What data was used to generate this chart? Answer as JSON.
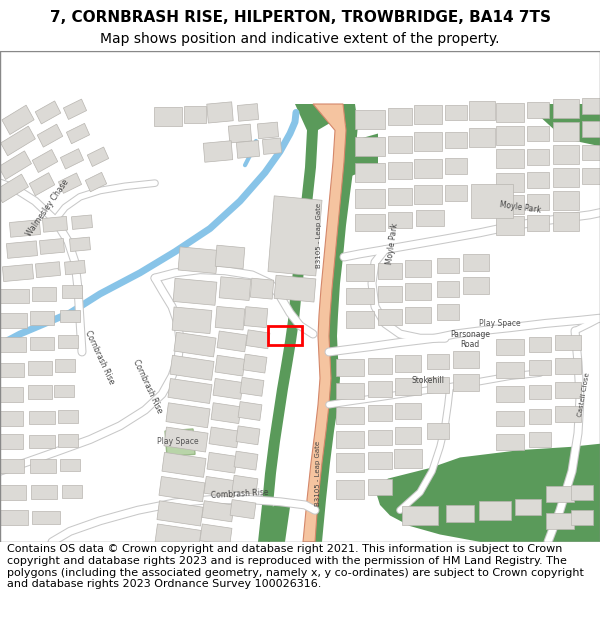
{
  "title_line1": "7, CORNBRASH RISE, HILPERTON, TROWBRIDGE, BA14 7TS",
  "title_line2": "Map shows position and indicative extent of the property.",
  "footer_text": "Contains OS data © Crown copyright and database right 2021. This information is subject to Crown copyright and database rights 2023 and is reproduced with the permission of HM Land Registry. The polygons (including the associated geometry, namely x, y co-ordinates) are subject to Crown copyright and database rights 2023 Ordnance Survey 100026316.",
  "map_bg": "#ffffff",
  "road_main_color": "#f5c4a0",
  "road_main_border": "#d4876a",
  "road_minor_color": "#ffffff",
  "road_minor_border": "#c8c8c8",
  "green_dark": "#5a9a5a",
  "green_light": "#b8d4a8",
  "water_color": "#88c4e8",
  "building_color": "#dcdad6",
  "building_border": "#b8b5b0",
  "highlight_color": "#ff0000",
  "title_fontsize": 11,
  "subtitle_fontsize": 10,
  "footer_fontsize": 8.0
}
